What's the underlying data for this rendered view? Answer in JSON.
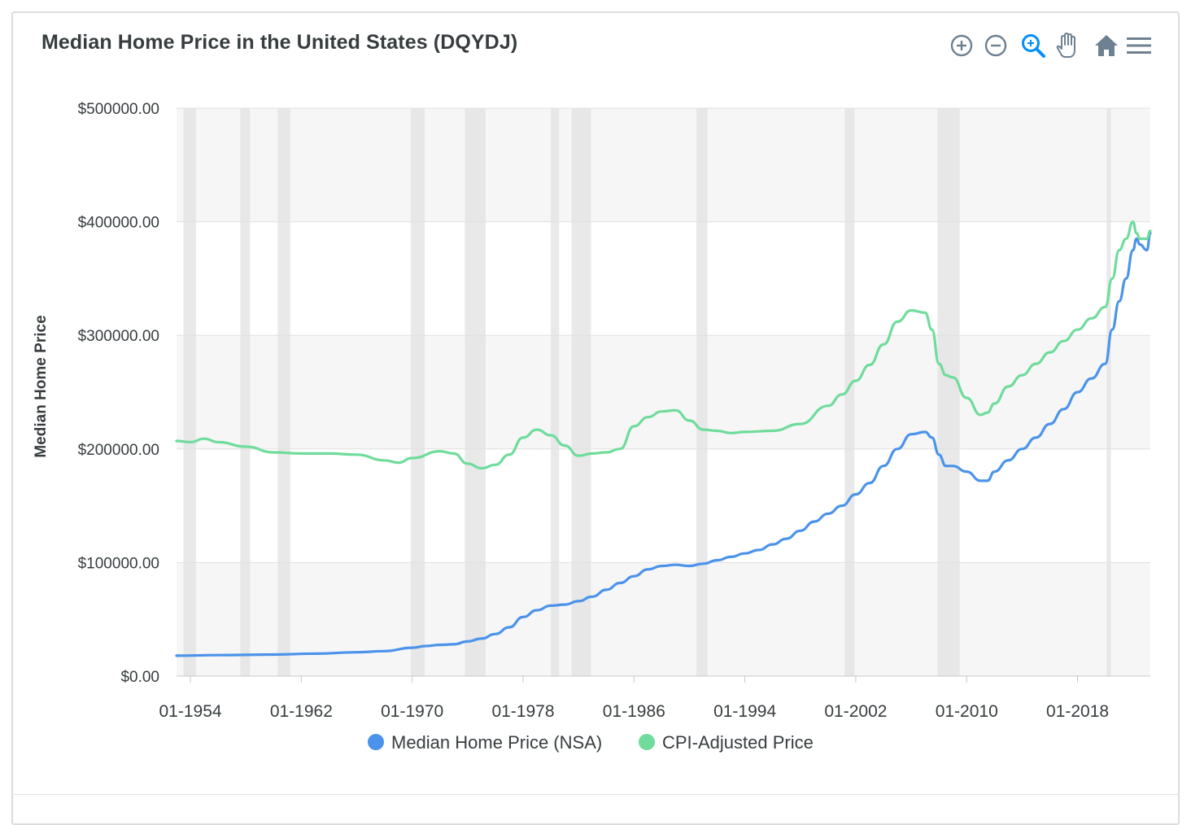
{
  "title": "Median Home Price in the United States (DQYDJ)",
  "toolbar": {
    "icons": [
      "zoom-in-icon",
      "zoom-out-icon",
      "selection-zoom-icon",
      "pan-hand-icon",
      "reset-home-icon",
      "menu-icon"
    ],
    "icon_color": "#6e8192",
    "active_color": "#008ffb"
  },
  "chart_data": {
    "type": "line",
    "ylabel": "Median Home Price",
    "xlabel": "",
    "ylim": [
      0,
      500000
    ],
    "yticks": [
      "$0.00",
      "$100000.00",
      "$200000.00",
      "$300000.00",
      "$400000.00",
      "$500000.00"
    ],
    "yticks_values": [
      0,
      100000,
      200000,
      300000,
      400000,
      500000
    ],
    "xlim": [
      1953.0,
      2023.25
    ],
    "xticks": [
      "01-1954",
      "01-1962",
      "01-1970",
      "01-1978",
      "01-1986",
      "01-1994",
      "01-2002",
      "01-2010",
      "01-2018"
    ],
    "xticks_values": [
      1954,
      1962,
      1970,
      1978,
      1986,
      1994,
      2002,
      2010,
      2018
    ],
    "grid": true,
    "legend": "bottom-center",
    "recessions": [
      [
        1953.5,
        1954.4
      ],
      [
        1957.6,
        1958.3
      ],
      [
        1960.3,
        1961.2
      ],
      [
        1969.9,
        1970.9
      ],
      [
        1973.8,
        1975.3
      ],
      [
        1980.0,
        1980.6
      ],
      [
        1981.5,
        1982.9
      ],
      [
        1990.5,
        1991.3
      ],
      [
        2001.2,
        2001.9
      ],
      [
        2007.9,
        2009.5
      ],
      [
        2020.1,
        2020.4
      ]
    ],
    "series": [
      {
        "name": "Median Home Price (NSA)",
        "color": "#4b93ea",
        "x": [
          1953,
          1956,
          1960,
          1963,
          1966,
          1968,
          1970,
          1971,
          1972,
          1973,
          1974,
          1975,
          1976,
          1977,
          1978,
          1979,
          1980,
          1981,
          1982,
          1983,
          1984,
          1985,
          1986,
          1987,
          1988,
          1989,
          1990,
          1991,
          1992,
          1993,
          1994,
          1995,
          1996,
          1997,
          1998,
          1999,
          2000,
          2001,
          2002,
          2003,
          2004,
          2005,
          2006,
          2007,
          2007.5,
          2008,
          2008.5,
          2009,
          2010,
          2011,
          2011.5,
          2012,
          2013,
          2014,
          2015,
          2016,
          2017,
          2018,
          2019,
          2020,
          2020.5,
          2021,
          2021.5,
          2022,
          2022.25,
          2022.5,
          2023,
          2023.25
        ],
        "y": [
          18000,
          18500,
          19000,
          19800,
          21000,
          22000,
          25000,
          26500,
          27500,
          28000,
          30500,
          33000,
          37000,
          43000,
          52000,
          58000,
          62000,
          63000,
          66000,
          70000,
          76000,
          82000,
          88000,
          94000,
          97000,
          98000,
          97000,
          99000,
          102000,
          105000,
          108000,
          111000,
          116000,
          121000,
          128000,
          136000,
          143000,
          150000,
          160000,
          170000,
          185000,
          200000,
          213000,
          215000,
          210000,
          195000,
          185000,
          185000,
          180000,
          172000,
          172000,
          180000,
          190000,
          200000,
          210000,
          222000,
          235000,
          250000,
          262000,
          275000,
          305000,
          330000,
          350000,
          375000,
          385000,
          380000,
          375000,
          390000
        ]
      },
      {
        "name": "CPI-Adjusted Price",
        "color": "#6fdc9b",
        "x": [
          1953,
          1954,
          1955,
          1956,
          1958,
          1960,
          1962,
          1964,
          1966,
          1968,
          1969,
          1970,
          1972,
          1973,
          1974,
          1975,
          1976,
          1977,
          1978,
          1979,
          1980,
          1981,
          1982,
          1983,
          1984,
          1985,
          1986,
          1987,
          1988,
          1989,
          1990,
          1991,
          1992,
          1993,
          1994,
          1996,
          1998,
          2000,
          2001,
          2002,
          2003,
          2004,
          2005,
          2006,
          2007,
          2007.5,
          2008,
          2008.5,
          2009,
          2010,
          2011,
          2011.5,
          2012,
          2013,
          2014,
          2015,
          2016,
          2017,
          2018,
          2019,
          2020,
          2020.5,
          2021,
          2021.5,
          2022,
          2022.25,
          2022.5,
          2023,
          2023.25
        ],
        "y": [
          207000,
          206000,
          209000,
          206000,
          202000,
          197000,
          196000,
          196000,
          195000,
          190000,
          188000,
          192000,
          198000,
          196000,
          187000,
          183000,
          186000,
          195000,
          210000,
          217000,
          212000,
          203000,
          194000,
          196000,
          197000,
          200000,
          220000,
          228000,
          233000,
          234000,
          225000,
          217000,
          216000,
          214000,
          215000,
          216000,
          222000,
          238000,
          248000,
          260000,
          274000,
          292000,
          312000,
          322000,
          320000,
          305000,
          275000,
          265000,
          263000,
          245000,
          230000,
          232000,
          240000,
          255000,
          265000,
          275000,
          285000,
          295000,
          305000,
          315000,
          325000,
          350000,
          375000,
          385000,
          400000,
          390000,
          385000,
          385000,
          392000
        ]
      }
    ]
  }
}
